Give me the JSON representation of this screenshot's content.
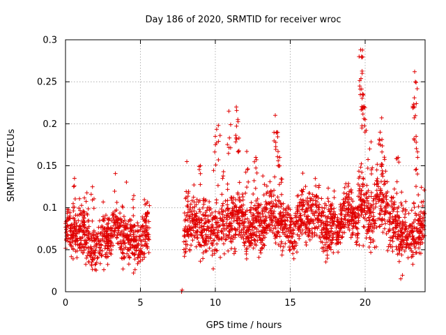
{
  "chart_data": {
    "type": "scatter",
    "title": "Day 186 of 2020, SRMTID for receiver wroc",
    "xlabel": "GPS time / hours",
    "ylabel": "SRMTID / TECUs",
    "xlim": [
      0,
      24
    ],
    "ylim": [
      0,
      0.3
    ],
    "x_ticks": [
      0,
      5,
      10,
      15,
      20
    ],
    "x_tick_labels": [
      "0",
      "5",
      "10",
      "15",
      "20"
    ],
    "y_ticks": [
      0,
      0.05,
      0.1,
      0.15,
      0.2,
      0.25,
      0.3
    ],
    "y_tick_labels": [
      "0",
      "0.05",
      "0.1",
      "0.15",
      "0.2",
      "0.25",
      "0.3"
    ],
    "grid": true,
    "marker": "+",
    "series": [
      {
        "name": "SRMTID",
        "color": "#e00000",
        "segments": [
          {
            "x_range": [
              0.0,
              5.6
            ],
            "baseline": 0.065,
            "spread": 0.018
          },
          {
            "x_range": [
              7.9,
              9.5
            ],
            "baseline": 0.075,
            "spread": 0.022
          },
          {
            "x_range": [
              9.5,
              13.5
            ],
            "baseline": 0.082,
            "spread": 0.022
          },
          {
            "x_range": [
              13.5,
              19.5
            ],
            "baseline": 0.083,
            "spread": 0.02
          },
          {
            "x_range": [
              19.5,
              21.5
            ],
            "baseline": 0.105,
            "spread": 0.028
          },
          {
            "x_range": [
              21.5,
              24.0
            ],
            "baseline": 0.072,
            "spread": 0.022
          }
        ],
        "isolated_points": [
          {
            "x": 7.75,
            "y": 0.0
          },
          {
            "x": 7.78,
            "y": 0.002
          }
        ],
        "peaks": [
          {
            "x": 0.6,
            "y": 0.135
          },
          {
            "x": 1.8,
            "y": 0.125
          },
          {
            "x": 4.5,
            "y": 0.11
          },
          {
            "x": 5.4,
            "y": 0.105
          },
          {
            "x": 8.1,
            "y": 0.155
          },
          {
            "x": 9.0,
            "y": 0.15
          },
          {
            "x": 10.0,
            "y": 0.185
          },
          {
            "x": 10.2,
            "y": 0.198
          },
          {
            "x": 10.9,
            "y": 0.215
          },
          {
            "x": 11.4,
            "y": 0.22
          },
          {
            "x": 11.5,
            "y": 0.205
          },
          {
            "x": 12.1,
            "y": 0.167
          },
          {
            "x": 12.7,
            "y": 0.16
          },
          {
            "x": 14.0,
            "y": 0.21
          },
          {
            "x": 14.1,
            "y": 0.19
          },
          {
            "x": 14.3,
            "y": 0.16
          },
          {
            "x": 19.7,
            "y": 0.288
          },
          {
            "x": 19.75,
            "y": 0.28
          },
          {
            "x": 19.8,
            "y": 0.26
          },
          {
            "x": 19.85,
            "y": 0.235
          },
          {
            "x": 19.9,
            "y": 0.22
          },
          {
            "x": 20.0,
            "y": 0.205
          },
          {
            "x": 20.3,
            "y": 0.17
          },
          {
            "x": 21.1,
            "y": 0.207
          },
          {
            "x": 21.0,
            "y": 0.19
          },
          {
            "x": 23.3,
            "y": 0.262
          },
          {
            "x": 23.35,
            "y": 0.25
          },
          {
            "x": 23.3,
            "y": 0.22
          },
          {
            "x": 23.4,
            "y": 0.185
          },
          {
            "x": 23.5,
            "y": 0.16
          },
          {
            "x": 22.2,
            "y": 0.16
          }
        ]
      }
    ]
  }
}
